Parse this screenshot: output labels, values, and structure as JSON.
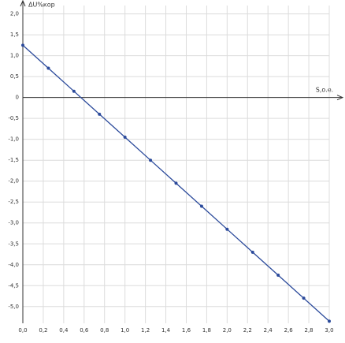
{
  "chart_data": {
    "type": "line",
    "y_axis_label": "ΔU%кор",
    "x_axis_label": "S,o.e.",
    "x": [
      0,
      0.25,
      0.5,
      0.75,
      1.0,
      1.25,
      1.5,
      1.75,
      2.0,
      2.25,
      2.5,
      2.75,
      3.0
    ],
    "series": [
      {
        "color": "#2b4a9b",
        "values": [
          1.25,
          0.7,
          0.15,
          -0.4,
          -0.95,
          -1.5,
          -2.05,
          -2.6,
          -3.15,
          -3.7,
          -4.25,
          -4.8,
          -5.35
        ]
      }
    ],
    "xlim": [
      0,
      3.0
    ],
    "ylim": [
      -5.4,
      2.2
    ],
    "xticks": [
      {
        "value": 0,
        "label": "0,0"
      },
      {
        "value": 0.2,
        "label": "0,2"
      },
      {
        "value": 0.4,
        "label": "0,4"
      },
      {
        "value": 0.6,
        "label": "0,6"
      },
      {
        "value": 0.8,
        "label": "0,8"
      },
      {
        "value": 1.0,
        "label": "1,0"
      },
      {
        "value": 1.2,
        "label": "1,2"
      },
      {
        "value": 1.4,
        "label": "1,4"
      },
      {
        "value": 1.6,
        "label": "1,6"
      },
      {
        "value": 1.8,
        "label": "1,8"
      },
      {
        "value": 2.0,
        "label": "2,0"
      },
      {
        "value": 2.2,
        "label": "2,2"
      },
      {
        "value": 2.4,
        "label": "2,4"
      },
      {
        "value": 2.6,
        "label": "2,6"
      },
      {
        "value": 2.8,
        "label": "2,8"
      },
      {
        "value": 3.0,
        "label": "3,0"
      }
    ],
    "yticks": [
      {
        "value": 2.0,
        "label": "2,0"
      },
      {
        "value": 1.5,
        "label": "1,5"
      },
      {
        "value": 1.0,
        "label": "1,0"
      },
      {
        "value": 0.5,
        "label": "0,5"
      },
      0,
      {
        "value": -0.5,
        "label": "-0,5"
      },
      {
        "value": -1.0,
        "label": "-1,0"
      },
      {
        "value": -1.5,
        "label": "-1,5"
      },
      {
        "value": -2.0,
        "label": "-2,0"
      },
      {
        "value": -2.5,
        "label": "-2,5"
      },
      {
        "value": -3.0,
        "label": "-3,0"
      },
      {
        "value": -3.5,
        "label": "-3,5"
      },
      {
        "value": -4.0,
        "label": "-4,0"
      },
      {
        "value": -4.5,
        "label": "-4,5"
      },
      {
        "value": -5.0,
        "label": "-5,0"
      }
    ],
    "grid": true
  }
}
